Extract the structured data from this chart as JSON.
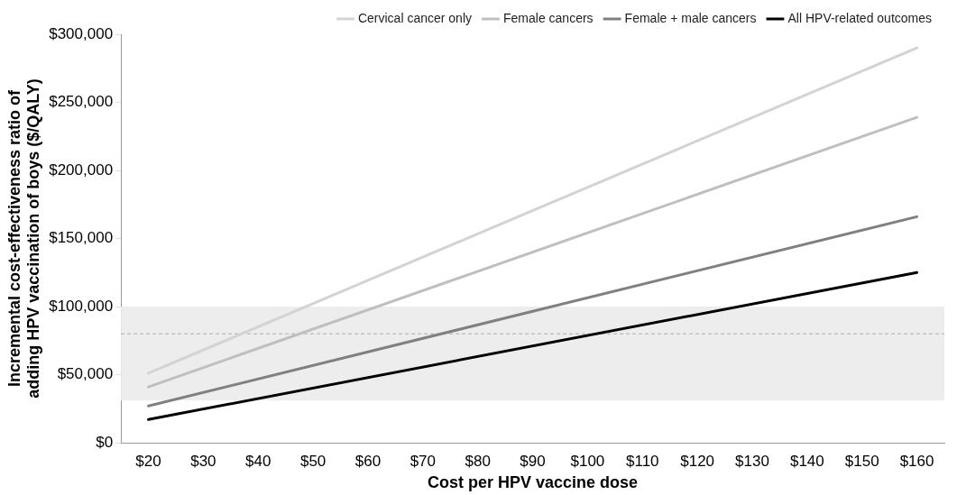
{
  "chart_data": {
    "type": "line",
    "xlabel": "Cost per HPV vaccine dose",
    "ylabel": "Incremental cost-effectiveness ratio of adding HPV vaccination of boys ($/QALY)",
    "x": [
      20,
      160
    ],
    "series": [
      {
        "name": "Cervical cancer only",
        "color": "#d3d3d3",
        "values": [
          51000,
          290000
        ]
      },
      {
        "name": "Female cancers",
        "color": "#bfbfbf",
        "values": [
          41000,
          239000
        ]
      },
      {
        "name": "Female + male cancers",
        "color": "#808080",
        "values": [
          27000,
          166000
        ]
      },
      {
        "name": "All HPV-related outcomes",
        "color": "#000000",
        "values": [
          17000,
          125000
        ]
      }
    ],
    "xlim": [
      15,
      165
    ],
    "xticks": [
      {
        "value": 20,
        "label": "$20"
      },
      {
        "value": 30,
        "label": "$30"
      },
      {
        "value": 40,
        "label": "$40"
      },
      {
        "value": 50,
        "label": "$50"
      },
      {
        "value": 60,
        "label": "$60"
      },
      {
        "value": 70,
        "label": "$70"
      },
      {
        "value": 80,
        "label": "$80"
      },
      {
        "value": 90,
        "label": "$90"
      },
      {
        "value": 100,
        "label": "$100"
      },
      {
        "value": 110,
        "label": "$110"
      },
      {
        "value": 120,
        "label": "$120"
      },
      {
        "value": 130,
        "label": "$130"
      },
      {
        "value": 140,
        "label": "$140"
      },
      {
        "value": 150,
        "label": "$150"
      },
      {
        "value": 160,
        "label": "$160"
      }
    ],
    "ylim": [
      0,
      300000
    ],
    "yticks": [
      {
        "value": 0,
        "label": "$0"
      },
      {
        "value": 50000,
        "label": "$50,000"
      },
      {
        "value": 100000,
        "label": "$100,000"
      },
      {
        "value": 150000,
        "label": "$150,000"
      },
      {
        "value": 200000,
        "label": "$200,000"
      },
      {
        "value": 250000,
        "label": "$250,000"
      },
      {
        "value": 300000,
        "label": "$300,000"
      }
    ],
    "bands": [
      {
        "axis": "y",
        "from": 31000,
        "to": 100000,
        "color": "#ededed"
      }
    ],
    "ref_lines": [
      {
        "axis": "y",
        "value": 80000,
        "color": "#aaaaaa",
        "line_style": "dashed"
      }
    ],
    "grid": false,
    "legend": "top",
    "marker": "none",
    "line_style": "solid"
  }
}
